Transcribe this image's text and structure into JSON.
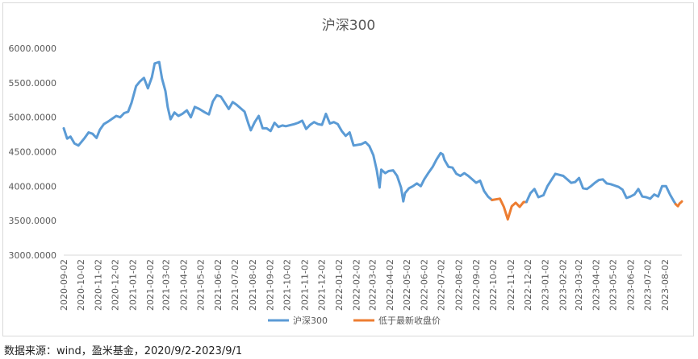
{
  "source_note": "数据来源：wind，盈米基金，2020/9/2-2023/9/1",
  "chart_data": {
    "type": "line",
    "title": "沪深300",
    "xlabel": "",
    "ylabel": "",
    "ylim": [
      3000,
      6000
    ],
    "y_ticks": [
      "3000.0000",
      "3500.0000",
      "4000.0000",
      "4500.0000",
      "5000.0000",
      "5500.0000",
      "6000.0000"
    ],
    "x_ticks": [
      "2020-09-02",
      "2020-10-02",
      "2020-11-02",
      "2020-12-02",
      "2021-01-02",
      "2021-02-02",
      "2021-03-02",
      "2021-04-02",
      "2021-05-02",
      "2021-06-02",
      "2021-07-02",
      "2021-08-02",
      "2021-09-02",
      "2021-10-02",
      "2021-11-02",
      "2021-12-02",
      "2022-01-02",
      "2022-02-02",
      "2022-03-02",
      "2022-04-02",
      "2022-05-02",
      "2022-06-02",
      "2022-07-02",
      "2022-08-02",
      "2022-09-02",
      "2022-10-02",
      "2022-11-02",
      "2022-12-02",
      "2023-01-02",
      "2023-02-02",
      "2023-03-02",
      "2023-04-02",
      "2023-05-02",
      "2023-06-02",
      "2023-07-02",
      "2023-08-02"
    ],
    "grid": false,
    "legend_position": "bottom",
    "series": [
      {
        "name": "沪深300",
        "color": "#5b9bd5",
        "points": [
          [
            "2020-09-02",
            4840
          ],
          [
            "2020-09-08",
            4690
          ],
          [
            "2020-09-14",
            4720
          ],
          [
            "2020-09-21",
            4620
          ],
          [
            "2020-09-28",
            4590
          ],
          [
            "2020-10-09",
            4700
          ],
          [
            "2020-10-16",
            4780
          ],
          [
            "2020-10-23",
            4760
          ],
          [
            "2020-10-30",
            4700
          ],
          [
            "2020-11-05",
            4820
          ],
          [
            "2020-11-12",
            4900
          ],
          [
            "2020-11-20",
            4940
          ],
          [
            "2020-11-27",
            4980
          ],
          [
            "2020-12-04",
            5020
          ],
          [
            "2020-12-11",
            5000
          ],
          [
            "2020-12-18",
            5060
          ],
          [
            "2020-12-25",
            5080
          ],
          [
            "2020-12-31",
            5210
          ],
          [
            "2021-01-08",
            5450
          ],
          [
            "2021-01-15",
            5520
          ],
          [
            "2021-01-22",
            5570
          ],
          [
            "2021-01-29",
            5420
          ],
          [
            "2021-02-05",
            5580
          ],
          [
            "2021-02-10",
            5780
          ],
          [
            "2021-02-18",
            5800
          ],
          [
            "2021-02-23",
            5560
          ],
          [
            "2021-03-01",
            5380
          ],
          [
            "2021-03-05",
            5150
          ],
          [
            "2021-03-10",
            4970
          ],
          [
            "2021-03-17",
            5070
          ],
          [
            "2021-03-24",
            5020
          ],
          [
            "2021-03-31",
            5050
          ],
          [
            "2021-04-08",
            5100
          ],
          [
            "2021-04-15",
            5000
          ],
          [
            "2021-04-22",
            5150
          ],
          [
            "2021-04-30",
            5120
          ],
          [
            "2021-05-10",
            5070
          ],
          [
            "2021-05-17",
            5040
          ],
          [
            "2021-05-24",
            5230
          ],
          [
            "2021-05-31",
            5320
          ],
          [
            "2021-06-07",
            5300
          ],
          [
            "2021-06-14",
            5210
          ],
          [
            "2021-06-21",
            5120
          ],
          [
            "2021-06-28",
            5220
          ],
          [
            "2021-07-05",
            5180
          ],
          [
            "2021-07-12",
            5130
          ],
          [
            "2021-07-19",
            5080
          ],
          [
            "2021-07-26",
            4900
          ],
          [
            "2021-07-30",
            4810
          ],
          [
            "2021-08-06",
            4930
          ],
          [
            "2021-08-13",
            5020
          ],
          [
            "2021-08-20",
            4840
          ],
          [
            "2021-08-27",
            4840
          ],
          [
            "2021-09-03",
            4800
          ],
          [
            "2021-09-10",
            4920
          ],
          [
            "2021-09-17",
            4860
          ],
          [
            "2021-09-24",
            4880
          ],
          [
            "2021-09-30",
            4870
          ],
          [
            "2021-10-15",
            4900
          ],
          [
            "2021-10-22",
            4920
          ],
          [
            "2021-10-29",
            4950
          ],
          [
            "2021-11-05",
            4830
          ],
          [
            "2021-11-12",
            4890
          ],
          [
            "2021-11-19",
            4930
          ],
          [
            "2021-11-26",
            4900
          ],
          [
            "2021-12-03",
            4890
          ],
          [
            "2021-12-10",
            5050
          ],
          [
            "2021-12-17",
            4910
          ],
          [
            "2021-12-24",
            4930
          ],
          [
            "2021-12-31",
            4900
          ],
          [
            "2022-01-07",
            4800
          ],
          [
            "2022-01-14",
            4730
          ],
          [
            "2022-01-21",
            4780
          ],
          [
            "2022-01-28",
            4590
          ],
          [
            "2022-02-11",
            4610
          ],
          [
            "2022-02-18",
            4640
          ],
          [
            "2022-02-25",
            4580
          ],
          [
            "2022-03-04",
            4450
          ],
          [
            "2022-03-10",
            4230
          ],
          [
            "2022-03-15",
            3980
          ],
          [
            "2022-03-18",
            4240
          ],
          [
            "2022-03-25",
            4190
          ],
          [
            "2022-03-31",
            4220
          ],
          [
            "2022-04-08",
            4230
          ],
          [
            "2022-04-15",
            4150
          ],
          [
            "2022-04-22",
            3980
          ],
          [
            "2022-04-26",
            3780
          ],
          [
            "2022-04-29",
            3900
          ],
          [
            "2022-05-06",
            3970
          ],
          [
            "2022-05-13",
            4000
          ],
          [
            "2022-05-20",
            4040
          ],
          [
            "2022-05-27",
            4000
          ],
          [
            "2022-06-02",
            4100
          ],
          [
            "2022-06-10",
            4200
          ],
          [
            "2022-06-17",
            4280
          ],
          [
            "2022-06-24",
            4390
          ],
          [
            "2022-07-01",
            4480
          ],
          [
            "2022-07-05",
            4460
          ],
          [
            "2022-07-08",
            4380
          ],
          [
            "2022-07-15",
            4280
          ],
          [
            "2022-07-22",
            4270
          ],
          [
            "2022-07-29",
            4180
          ],
          [
            "2022-08-05",
            4150
          ],
          [
            "2022-08-12",
            4190
          ],
          [
            "2022-08-19",
            4150
          ],
          [
            "2022-08-26",
            4100
          ],
          [
            "2022-09-02",
            4050
          ],
          [
            "2022-09-09",
            4080
          ],
          [
            "2022-09-16",
            3930
          ],
          [
            "2022-09-23",
            3850
          ],
          [
            "2022-09-30",
            3800
          ]
        ]
      },
      {
        "name": "低于最新收盘价",
        "color": "#ed7d31",
        "points": [
          [
            "2022-09-30",
            3800
          ],
          [
            "2022-10-14",
            3820
          ],
          [
            "2022-10-21",
            3700
          ],
          [
            "2022-10-28",
            3520
          ],
          [
            "2022-11-04",
            3710
          ],
          [
            "2022-11-11",
            3760
          ],
          [
            "2022-11-18",
            3700
          ],
          [
            "2022-11-25",
            3770
          ],
          [
            "2022-11-30",
            3770
          ]
        ]
      },
      {
        "name": "",
        "color": "#5b9bd5",
        "points": [
          [
            "2022-11-30",
            3770
          ],
          [
            "2022-12-07",
            3900
          ],
          [
            "2022-12-14",
            3960
          ],
          [
            "2022-12-21",
            3840
          ],
          [
            "2022-12-30",
            3870
          ],
          [
            "2023-01-06",
            4000
          ],
          [
            "2023-01-13",
            4090
          ],
          [
            "2023-01-20",
            4180
          ],
          [
            "2023-02-03",
            4150
          ],
          [
            "2023-02-10",
            4100
          ],
          [
            "2023-02-17",
            4050
          ],
          [
            "2023-02-24",
            4060
          ],
          [
            "2023-03-03",
            4120
          ],
          [
            "2023-03-10",
            3970
          ],
          [
            "2023-03-17",
            3960
          ],
          [
            "2023-03-24",
            4000
          ],
          [
            "2023-03-31",
            4050
          ],
          [
            "2023-04-07",
            4090
          ],
          [
            "2023-04-14",
            4100
          ],
          [
            "2023-04-21",
            4040
          ],
          [
            "2023-04-28",
            4030
          ],
          [
            "2023-05-05",
            4010
          ],
          [
            "2023-05-12",
            3990
          ],
          [
            "2023-05-19",
            3950
          ],
          [
            "2023-05-26",
            3830
          ],
          [
            "2023-06-02",
            3850
          ],
          [
            "2023-06-09",
            3880
          ],
          [
            "2023-06-16",
            3960
          ],
          [
            "2023-06-23",
            3850
          ],
          [
            "2023-06-30",
            3840
          ],
          [
            "2023-07-07",
            3820
          ],
          [
            "2023-07-14",
            3880
          ],
          [
            "2023-07-21",
            3850
          ],
          [
            "2023-07-28",
            4000
          ],
          [
            "2023-08-04",
            4000
          ],
          [
            "2023-08-11",
            3880
          ],
          [
            "2023-08-18",
            3780
          ],
          [
            "2023-08-21",
            3740
          ]
        ]
      },
      {
        "name": "",
        "color": "#ed7d31",
        "points": [
          [
            "2023-08-21",
            3740
          ],
          [
            "2023-08-25",
            3710
          ],
          [
            "2023-08-28",
            3750
          ],
          [
            "2023-08-31",
            3770
          ],
          [
            "2023-09-01",
            3780
          ]
        ]
      }
    ]
  }
}
